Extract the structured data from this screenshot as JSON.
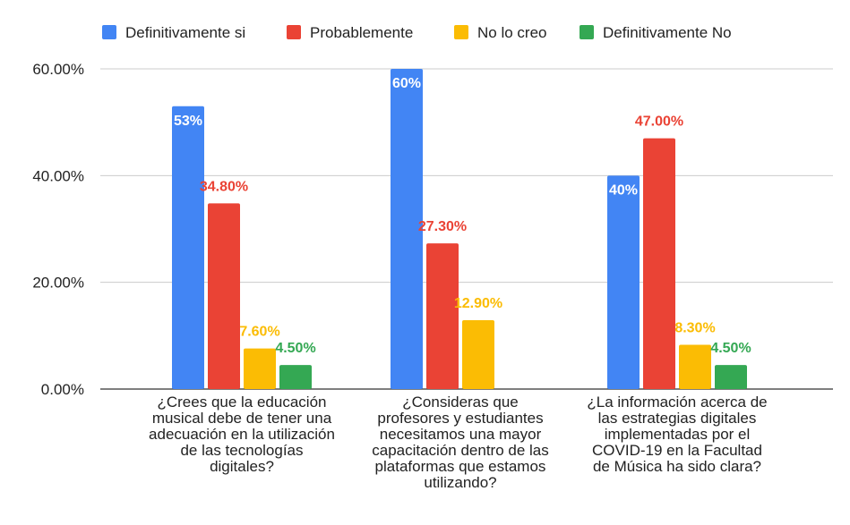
{
  "chart_data": {
    "type": "bar",
    "title": "",
    "xlabel": "",
    "ylabel": "",
    "ylim": [
      0,
      0.6
    ],
    "grid": true,
    "legend_position": "top",
    "y_ticks": [
      "0.00%",
      "20.00%",
      "40.00%",
      "60.00%"
    ],
    "categories": [
      "¿Crees que la educación musical debe de tener una adecuación en la utilización de las tecnologías digitales?",
      "¿Consideras que profesores y estudiantes necesitamos una mayor capacitación dentro de las plataformas que estamos utilizando?",
      "¿La información acerca de las estrategias digitales implementadas por el COVID-19 en la Facultad de Música ha sido clara?"
    ],
    "category_lines": [
      [
        "¿Crees que la educación",
        "musical debe de tener una",
        "adecuación en la utilización",
        "de las tecnologías",
        "digitales?"
      ],
      [
        "¿Consideras que",
        "profesores y estudiantes",
        "necesitamos una mayor",
        "capacitación dentro de las",
        "plataformas que estamos",
        "utilizando?"
      ],
      [
        "¿La información acerca de",
        "las estrategias digitales",
        "implementadas por el",
        "COVID-19 en la Facultad",
        "de Música ha sido clara?"
      ]
    ],
    "series": [
      {
        "name": "Definitivamente si",
        "color": "#4285F4",
        "values": [
          0.53,
          0.6,
          0.4
        ],
        "labels": [
          "53%",
          "60%",
          "40%"
        ]
      },
      {
        "name": "Probablemente",
        "color": "#EA4335",
        "values": [
          0.348,
          0.273,
          0.47
        ],
        "labels": [
          "34.80%",
          "27.30%",
          "47.00%"
        ]
      },
      {
        "name": "No lo creo",
        "color": "#FBBC04",
        "values": [
          0.076,
          0.129,
          0.083
        ],
        "labels": [
          "7.60%",
          "12.90%",
          "8.30%"
        ]
      },
      {
        "name": "Definitivamente No",
        "color": "#34A853",
        "values": [
          0.045,
          0,
          0.045
        ],
        "labels": [
          "4.50%",
          "",
          "4.50%"
        ]
      }
    ]
  }
}
